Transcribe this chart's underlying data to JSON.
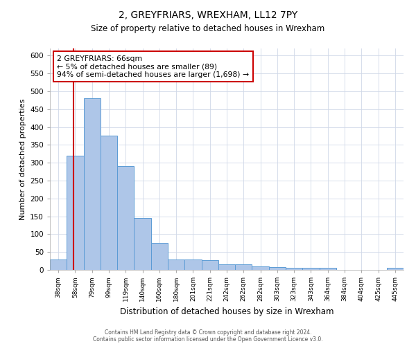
{
  "title": "2, GREYFRIARS, WREXHAM, LL12 7PY",
  "subtitle": "Size of property relative to detached houses in Wrexham",
  "xlabel": "Distribution of detached houses by size in Wrexham",
  "ylabel": "Number of detached properties",
  "footer_line1": "Contains HM Land Registry data © Crown copyright and database right 2024.",
  "footer_line2": "Contains public sector information licensed under the Open Government Licence v3.0.",
  "categories": [
    "38sqm",
    "58sqm",
    "79sqm",
    "99sqm",
    "119sqm",
    "140sqm",
    "160sqm",
    "180sqm",
    "201sqm",
    "221sqm",
    "242sqm",
    "262sqm",
    "282sqm",
    "303sqm",
    "323sqm",
    "343sqm",
    "364sqm",
    "384sqm",
    "404sqm",
    "425sqm",
    "445sqm"
  ],
  "values": [
    30,
    320,
    480,
    375,
    290,
    145,
    75,
    30,
    29,
    27,
    16,
    15,
    9,
    7,
    6,
    5,
    5,
    0,
    0,
    0,
    5
  ],
  "bar_color": "#aec6e8",
  "bar_edge_color": "#5b9bd5",
  "red_line_color": "#cc0000",
  "annotation_text": "2 GREYFRIARS: 66sqm\n← 5% of detached houses are smaller (89)\n94% of semi-detached houses are larger (1,698) →",
  "annotation_box_facecolor": "#ffffff",
  "annotation_box_edgecolor": "#cc0000",
  "ylim": [
    0,
    620
  ],
  "yticks": [
    0,
    50,
    100,
    150,
    200,
    250,
    300,
    350,
    400,
    450,
    500,
    550,
    600
  ],
  "plot_bg_color": "#ffffff",
  "fig_bg_color": "#ffffff",
  "grid_color": "#d0d8e8",
  "title_fontsize": 10,
  "subtitle_fontsize": 9
}
